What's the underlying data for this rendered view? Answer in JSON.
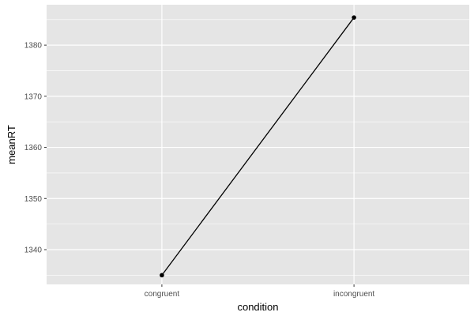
{
  "chart_data": {
    "type": "line",
    "xlabel": "condition",
    "ylabel": "meanRT",
    "categories": [
      "congruent",
      "incongruent"
    ],
    "series": [
      {
        "values": [
          1335.0,
          1385.4
        ],
        "color": "#000000"
      }
    ],
    "ylim": [
      1333.2,
      1387.9
    ],
    "yticks": [
      1340,
      1350,
      1360,
      1370,
      1380
    ],
    "grid": true,
    "colors": {
      "panel_background": "#e5e5e5",
      "grid_major": "#ffffff",
      "tick_label": "#4d4d4d",
      "axis_title": "#000000",
      "line": "#000000"
    }
  }
}
